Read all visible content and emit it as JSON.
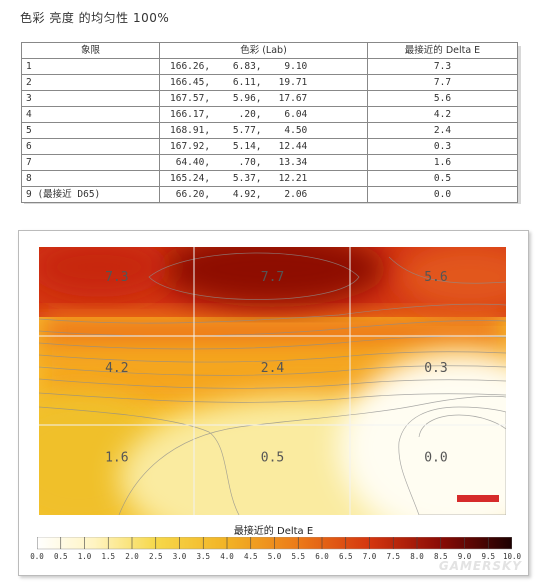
{
  "title": "色彩 亮度 的均匀性 100%",
  "table": {
    "headers": [
      "象限",
      "色彩 (Lab)",
      "最接近的 Delta E"
    ],
    "rows": [
      {
        "zone": "1",
        "lab": "166.26,    6.83,    9.10",
        "de": "7.3"
      },
      {
        "zone": "2",
        "lab": "166.45,    6.11,   19.71",
        "de": "7.7"
      },
      {
        "zone": "3",
        "lab": "167.57,    5.96,   17.67",
        "de": "5.6"
      },
      {
        "zone": "4",
        "lab": "166.17,     .20,    6.04",
        "de": "4.2"
      },
      {
        "zone": "5",
        "lab": "168.91,    5.77,    4.50",
        "de": "2.4"
      },
      {
        "zone": "6",
        "lab": "167.92,    5.14,   12.44",
        "de": "0.3"
      },
      {
        "zone": "7",
        "lab": " 64.40,     .70,   13.34",
        "de": "1.6"
      },
      {
        "zone": "8",
        "lab": "165.24,    5.37,   12.21",
        "de": "0.5"
      },
      {
        "zone": "9 (最接近 D65)",
        "lab": " 66.20,    4.92,    2.06",
        "de": "0.0"
      }
    ]
  },
  "chart_data": {
    "type": "heatmap",
    "grid": [
      [
        "7.3",
        "7.7",
        "5.6"
      ],
      [
        "4.2",
        "2.4",
        "0.3"
      ],
      [
        "1.6",
        "0.5",
        "0.0"
      ]
    ],
    "values": [
      [
        7.3,
        7.7,
        5.6
      ],
      [
        4.2,
        2.4,
        0.3
      ],
      [
        1.6,
        0.5,
        0.0
      ]
    ],
    "legend_title": "最接近的 Delta E",
    "legend_ticks": [
      "0.0",
      "0.5",
      "1.0",
      "1.5",
      "2.0",
      "2.5",
      "3.0",
      "3.5",
      "4.0",
      "4.5",
      "5.0",
      "5.5",
      "6.0",
      "6.5",
      "7.0",
      "7.5",
      "8.0",
      "8.5",
      "9.0",
      "9.5",
      "10.0"
    ],
    "range": [
      0,
      10
    ],
    "gridlines": true,
    "colors": {
      "low": "#ffffff",
      "mid": "#f2c32b",
      "high": "#220000",
      "marker": "#d62b2b"
    }
  },
  "watermark": "GAMERSKY"
}
